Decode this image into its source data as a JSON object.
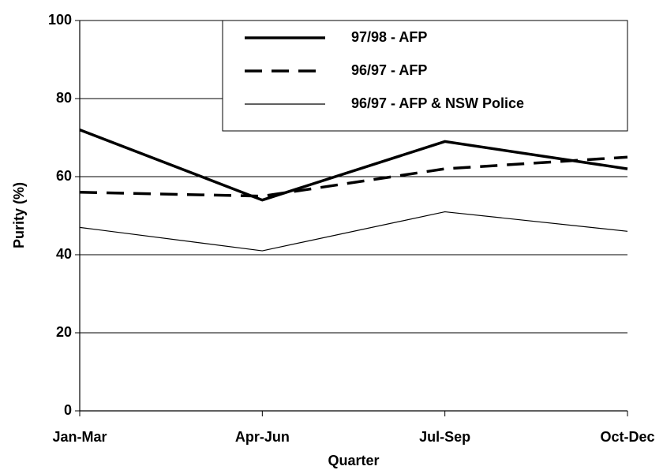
{
  "chart_data": {
    "type": "line",
    "x_label": "Quarter",
    "y_label": "Purity (%)",
    "categories": [
      "Jan-Mar",
      "Apr-Jun",
      "Jul-Sep",
      "Oct-Dec"
    ],
    "series": [
      {
        "name": "97/98 - AFP",
        "color": "#000000",
        "line_style": "solid",
        "line_width": 3.5,
        "values": [
          72,
          54,
          69,
          62
        ]
      },
      {
        "name": "96/97 - AFP",
        "color": "#000000",
        "line_style": "dashed",
        "line_width": 3.5,
        "values": [
          56,
          55,
          62,
          65
        ]
      },
      {
        "name": "96/97 - AFP & NSW Police",
        "color": "#000000",
        "line_style": "solid",
        "line_width": 1.2,
        "values": [
          47,
          41,
          51,
          46
        ]
      }
    ],
    "ylim": [
      0,
      100
    ],
    "yticks": [
      0,
      20,
      40,
      60,
      80,
      100
    ],
    "grid": true,
    "legend": "top-right"
  }
}
